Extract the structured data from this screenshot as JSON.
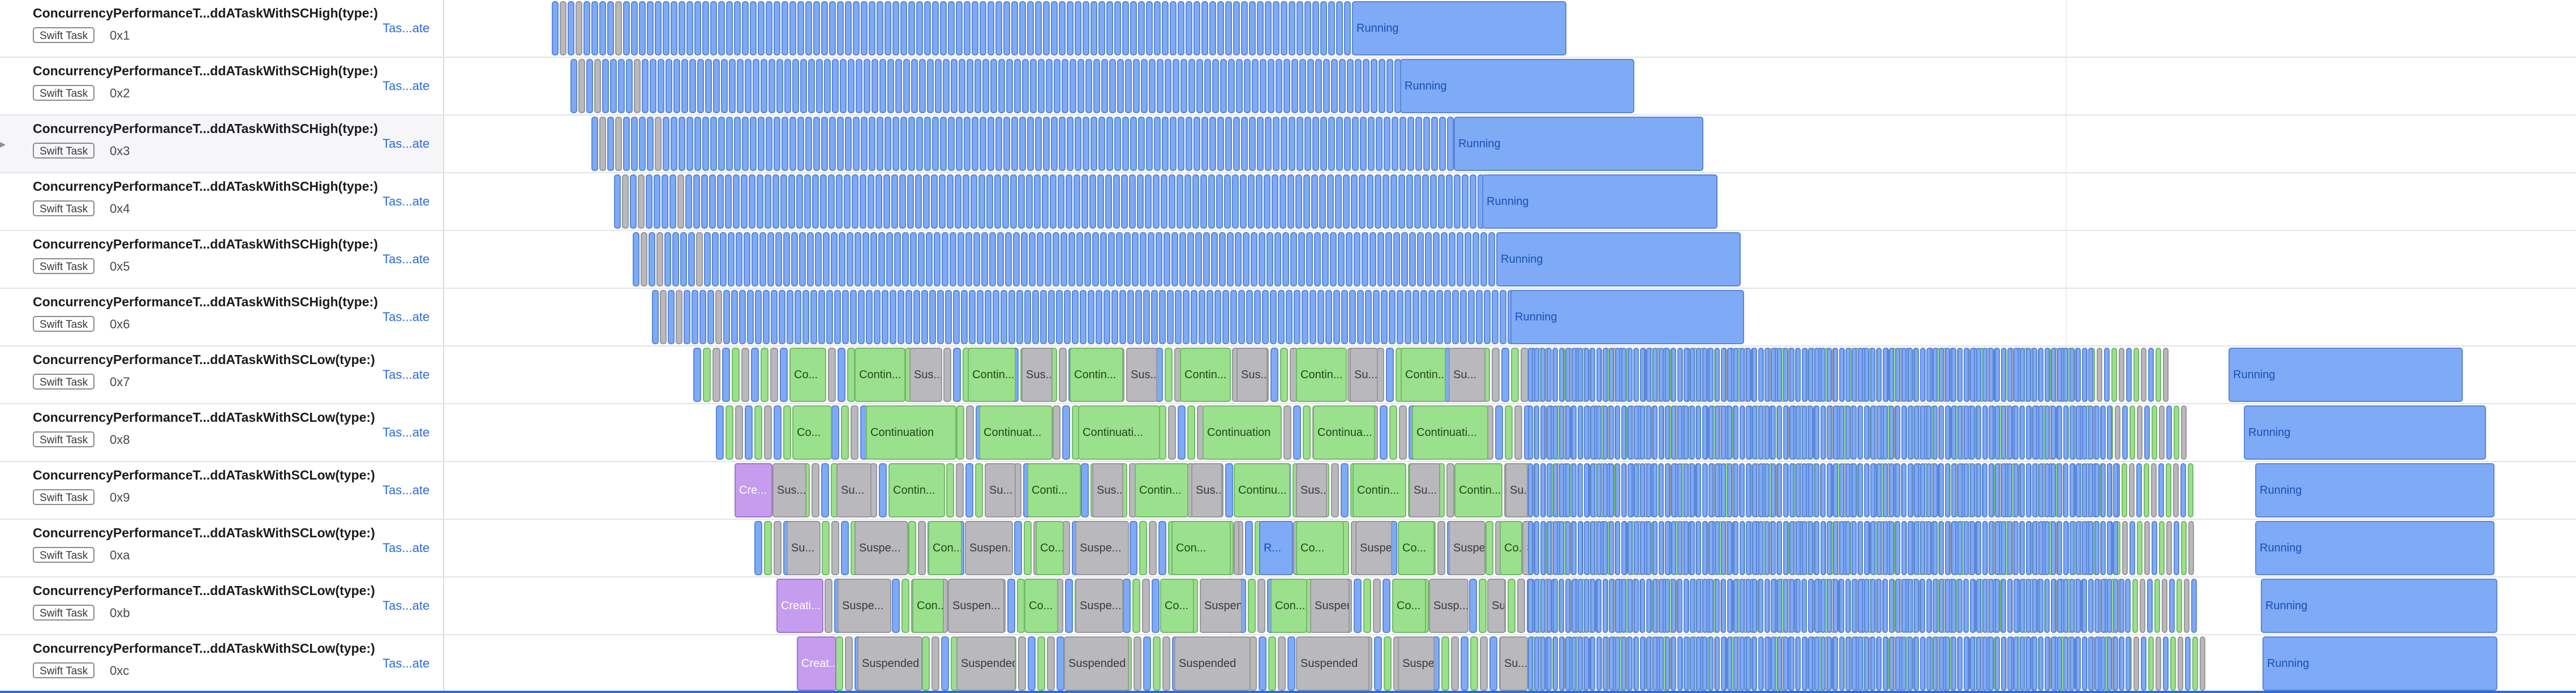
{
  "badge_label": "Swift Task",
  "link_label": "Tas...ate",
  "colors": {
    "running": "#7eaaf6",
    "continuation": "#9be08c",
    "suspended": "#b9b9bd",
    "creating": "#c69cee",
    "link": "#2c6bd6"
  },
  "rows": [
    {
      "name": "ConcurrencyPerformanceT...ddATaskWithSCHigh(type:)",
      "id": "0x1",
      "kind": "high",
      "segments": [
        {
          "label": "Running",
          "state": "running"
        }
      ]
    },
    {
      "name": "ConcurrencyPerformanceT...ddATaskWithSCHigh(type:)",
      "id": "0x2",
      "kind": "high",
      "segments": [
        {
          "label": "Running",
          "state": "running"
        }
      ]
    },
    {
      "name": "ConcurrencyPerformanceT...ddATaskWithSCHigh(type:)",
      "id": "0x3",
      "kind": "high",
      "selected": true,
      "segments": [
        {
          "label": "Running",
          "state": "running"
        }
      ]
    },
    {
      "name": "ConcurrencyPerformanceT...ddATaskWithSCHigh(type:)",
      "id": "0x4",
      "kind": "high",
      "segments": [
        {
          "label": "Running",
          "state": "running"
        }
      ]
    },
    {
      "name": "ConcurrencyPerformanceT...ddATaskWithSCHigh(type:)",
      "id": "0x5",
      "kind": "high",
      "segments": [
        {
          "label": "Running",
          "state": "running"
        }
      ]
    },
    {
      "name": "ConcurrencyPerformanceT...ddATaskWithSCHigh(type:)",
      "id": "0x6",
      "kind": "high",
      "segments": [
        {
          "label": "Running",
          "state": "running"
        }
      ]
    },
    {
      "name": "ConcurrencyPerformanceT...ddATaskWithSCLow(type:)",
      "id": "0x7",
      "kind": "low",
      "segments": [
        {
          "label": "Co...",
          "state": "cont"
        },
        {
          "label": "Contin...",
          "state": "cont"
        },
        {
          "label": "Sus...",
          "state": "susp"
        },
        {
          "label": "Contin...",
          "state": "cont"
        },
        {
          "label": "Sus...",
          "state": "susp"
        },
        {
          "label": "Contin...",
          "state": "cont"
        },
        {
          "label": "Sus...",
          "state": "susp"
        },
        {
          "label": "Contin...",
          "state": "cont"
        },
        {
          "label": "Sus...",
          "state": "susp"
        },
        {
          "label": "Contin...",
          "state": "cont"
        },
        {
          "label": "Su...",
          "state": "susp"
        },
        {
          "label": "Contin...",
          "state": "cont"
        },
        {
          "label": "Su...",
          "state": "susp"
        },
        {
          "label": "Running",
          "state": "running"
        }
      ]
    },
    {
      "name": "ConcurrencyPerformanceT...ddATaskWithSCLow(type:)",
      "id": "0x8",
      "kind": "low",
      "segments": [
        {
          "label": "Co...",
          "state": "cont"
        },
        {
          "label": "Continuation",
          "state": "cont"
        },
        {
          "label": "Continuat...",
          "state": "cont"
        },
        {
          "label": "Continuati...",
          "state": "cont"
        },
        {
          "label": "Continuation",
          "state": "cont"
        },
        {
          "label": "Continua...",
          "state": "cont"
        },
        {
          "label": "Continuati...",
          "state": "cont"
        },
        {
          "label": "Running",
          "state": "running"
        }
      ]
    },
    {
      "name": "ConcurrencyPerformanceT...ddATaskWithSCLow(type:)",
      "id": "0x9",
      "kind": "low",
      "segments": [
        {
          "label": "Cre...",
          "state": "create"
        },
        {
          "label": "Sus...",
          "state": "susp"
        },
        {
          "label": "Su...",
          "state": "susp"
        },
        {
          "label": "Contin...",
          "state": "cont"
        },
        {
          "label": "Su...",
          "state": "susp"
        },
        {
          "label": "Conti...",
          "state": "cont"
        },
        {
          "label": "Sus...",
          "state": "susp"
        },
        {
          "label": "Contin...",
          "state": "cont"
        },
        {
          "label": "Sus...",
          "state": "susp"
        },
        {
          "label": "Continu...",
          "state": "cont"
        },
        {
          "label": "Sus...",
          "state": "susp"
        },
        {
          "label": "Contin...",
          "state": "cont"
        },
        {
          "label": "Su...",
          "state": "susp"
        },
        {
          "label": "Contin...",
          "state": "cont"
        },
        {
          "label": "Su...",
          "state": "susp"
        },
        {
          "label": "Running",
          "state": "running"
        }
      ]
    },
    {
      "name": "ConcurrencyPerformanceT...ddATaskWithSCLow(type:)",
      "id": "0xa",
      "kind": "low",
      "segments": [
        {
          "label": "Su...",
          "state": "susp"
        },
        {
          "label": "Suspe...",
          "state": "susp"
        },
        {
          "label": "Con...",
          "state": "cont"
        },
        {
          "label": "Suspen...",
          "state": "susp"
        },
        {
          "label": "Co...",
          "state": "cont"
        },
        {
          "label": "Suspe...",
          "state": "susp"
        },
        {
          "label": "Con...",
          "state": "cont"
        },
        {
          "label": "Suspen...",
          "state": "susp"
        },
        {
          "label": "R...",
          "state": "running"
        },
        {
          "label": "Co...",
          "state": "cont"
        },
        {
          "label": "Suspe...",
          "state": "susp"
        },
        {
          "label": "Co...",
          "state": "cont"
        },
        {
          "label": "Suspe...",
          "state": "susp"
        },
        {
          "label": "Co...",
          "state": "cont"
        },
        {
          "label": "Su...",
          "state": "susp"
        },
        {
          "label": "Running",
          "state": "running"
        }
      ]
    },
    {
      "name": "ConcurrencyPerformanceT...ddATaskWithSCLow(type:)",
      "id": "0xb",
      "kind": "low",
      "segments": [
        {
          "label": "Creati...",
          "state": "create"
        },
        {
          "label": "Suspe...",
          "state": "susp"
        },
        {
          "label": "Con...",
          "state": "cont"
        },
        {
          "label": "Suspen...",
          "state": "susp"
        },
        {
          "label": "Co...",
          "state": "cont"
        },
        {
          "label": "Suspe...",
          "state": "susp"
        },
        {
          "label": "Co...",
          "state": "cont"
        },
        {
          "label": "Suspen...",
          "state": "susp"
        },
        {
          "label": "Con...",
          "state": "cont"
        },
        {
          "label": "Suspen...",
          "state": "susp"
        },
        {
          "label": "Co...",
          "state": "cont"
        },
        {
          "label": "Susp...",
          "state": "susp"
        },
        {
          "label": "Su...",
          "state": "susp"
        },
        {
          "label": "Running",
          "state": "running"
        }
      ]
    },
    {
      "name": "ConcurrencyPerformanceT...ddATaskWithSCLow(type:)",
      "id": "0xc",
      "kind": "low",
      "segments": [
        {
          "label": "Creat...",
          "state": "create"
        },
        {
          "label": "Suspended",
          "state": "susp"
        },
        {
          "label": "Suspended",
          "state": "susp"
        },
        {
          "label": "Suspended",
          "state": "susp"
        },
        {
          "label": "Suspended",
          "state": "susp"
        },
        {
          "label": "Suspended",
          "state": "susp"
        },
        {
          "label": "Suspended",
          "state": "susp"
        },
        {
          "label": "Su...",
          "state": "susp"
        },
        {
          "label": "Running",
          "state": "running"
        }
      ]
    }
  ]
}
